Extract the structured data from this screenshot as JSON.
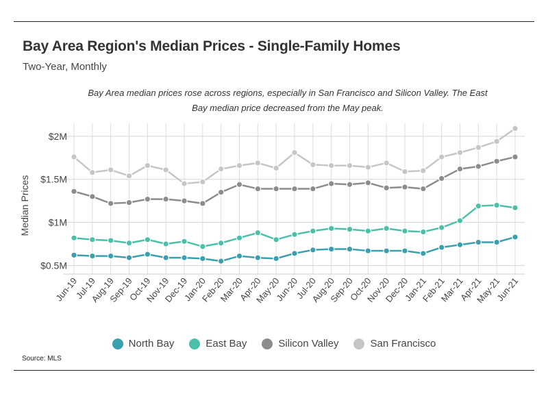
{
  "header": {
    "title": "Bay Area Region's Median Prices - Single-Family Homes",
    "subtitle": "Two-Year, Monthly",
    "note": "Bay Area median prices rose across regions, especially in San Francisco and Silicon Valley. The East Bay median price decreased from the May peak."
  },
  "footer": {
    "source": "Source:  MLS"
  },
  "chart_data": {
    "type": "line",
    "title": "Bay Area Region's Median Prices - Single-Family Homes",
    "subtitle": "Two-Year, Monthly",
    "ylabel": "Median Prices",
    "xlabel": "",
    "ylim": [
      0.5,
      2.0
    ],
    "yticks": [
      0.5,
      1.0,
      1.5,
      2.0
    ],
    "ytick_labels": [
      "$0.5M",
      "$1M",
      "$1.5M",
      "$2M"
    ],
    "grid": true,
    "legend_position": "bottom",
    "categories": [
      "Jun-19",
      "Jul-19",
      "Aug-19",
      "Sep-19",
      "Oct-19",
      "Nov-19",
      "Dec-19",
      "Jan-20",
      "Feb-20",
      "Mar-20",
      "Apr-20",
      "May-20",
      "Jun-20",
      "Jul-20",
      "Aug-20",
      "Sep-20",
      "Oct-20",
      "Nov-20",
      "Dec-20",
      "Jan-21",
      "Feb-21",
      "Mar-21",
      "Apr-21",
      "May-21",
      "Jun-21"
    ],
    "series": [
      {
        "name": "North Bay",
        "color": "#3a9fae",
        "values": [
          0.62,
          0.61,
          0.61,
          0.59,
          0.63,
          0.59,
          0.59,
          0.58,
          0.55,
          0.61,
          0.59,
          0.58,
          0.64,
          0.68,
          0.69,
          0.69,
          0.67,
          0.67,
          0.67,
          0.64,
          0.71,
          0.74,
          0.77,
          0.77,
          0.83
        ]
      },
      {
        "name": "East Bay",
        "color": "#4cbfa8",
        "values": [
          0.82,
          0.8,
          0.79,
          0.76,
          0.8,
          0.75,
          0.78,
          0.72,
          0.76,
          0.82,
          0.88,
          0.8,
          0.86,
          0.9,
          0.93,
          0.92,
          0.9,
          0.93,
          0.9,
          0.89,
          0.94,
          1.02,
          1.19,
          1.2,
          1.17
        ]
      },
      {
        "name": "Silicon Valley",
        "color": "#8c8c8c",
        "values": [
          1.36,
          1.3,
          1.22,
          1.23,
          1.27,
          1.27,
          1.25,
          1.22,
          1.35,
          1.44,
          1.39,
          1.39,
          1.39,
          1.39,
          1.45,
          1.44,
          1.46,
          1.4,
          1.41,
          1.39,
          1.51,
          1.62,
          1.65,
          1.71,
          1.76
        ]
      },
      {
        "name": "San Francisco",
        "color": "#c6c6c6",
        "values": [
          1.76,
          1.58,
          1.61,
          1.54,
          1.66,
          1.61,
          1.45,
          1.47,
          1.62,
          1.66,
          1.69,
          1.63,
          1.81,
          1.67,
          1.66,
          1.66,
          1.64,
          1.69,
          1.59,
          1.6,
          1.76,
          1.81,
          1.87,
          1.94,
          2.09
        ]
      }
    ]
  }
}
